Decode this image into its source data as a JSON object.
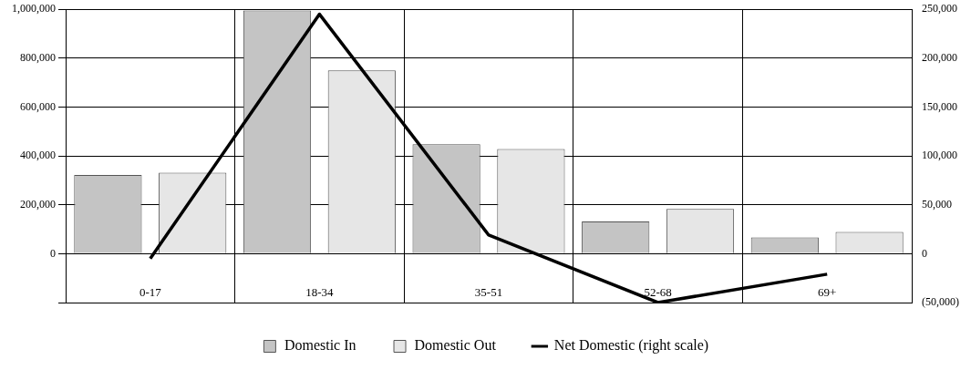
{
  "chart_data": {
    "type": "bar",
    "categories": [
      "0-17",
      "18-34",
      "35-51",
      "52-68",
      "69+"
    ],
    "series": [
      {
        "name": "Domestic In",
        "color": "#c4c4c4",
        "values": [
          322000,
          995000,
          448000,
          132000,
          67000
        ]
      },
      {
        "name": "Domestic Out",
        "color": "#e6e6e6",
        "values": [
          331000,
          750000,
          428000,
          183000,
          89000
        ]
      },
      {
        "name": "Net Domestic (right scale)",
        "type": "line",
        "axis": "y2",
        "color": "#000000",
        "values": [
          -5000,
          245000,
          19000,
          -50000,
          -21000
        ]
      }
    ],
    "ylim": [
      -200000,
      1000000
    ],
    "yticks": [
      {
        "value": -200000,
        "label": null
      },
      0,
      {
        "value": 200000,
        "label": "200,000"
      },
      {
        "value": 400000,
        "label": "400,000"
      },
      {
        "value": 600000,
        "label": "600,000"
      },
      {
        "value": 800000,
        "label": "800,000"
      },
      {
        "value": 1000000,
        "label": "1,000,000"
      }
    ],
    "y2lim": [
      -50000,
      250000
    ],
    "y2ticks": [
      {
        "value": -50000,
        "label": "(50,000)"
      },
      0,
      {
        "value": 50000,
        "label": "50,000"
      },
      {
        "value": 100000,
        "label": "100,000"
      },
      {
        "value": 150000,
        "label": "150,000"
      },
      {
        "value": 200000,
        "label": "200,000"
      },
      {
        "value": 250000,
        "label": "250,000"
      }
    ],
    "grid": true,
    "legend": "bottom",
    "marker": "none"
  }
}
